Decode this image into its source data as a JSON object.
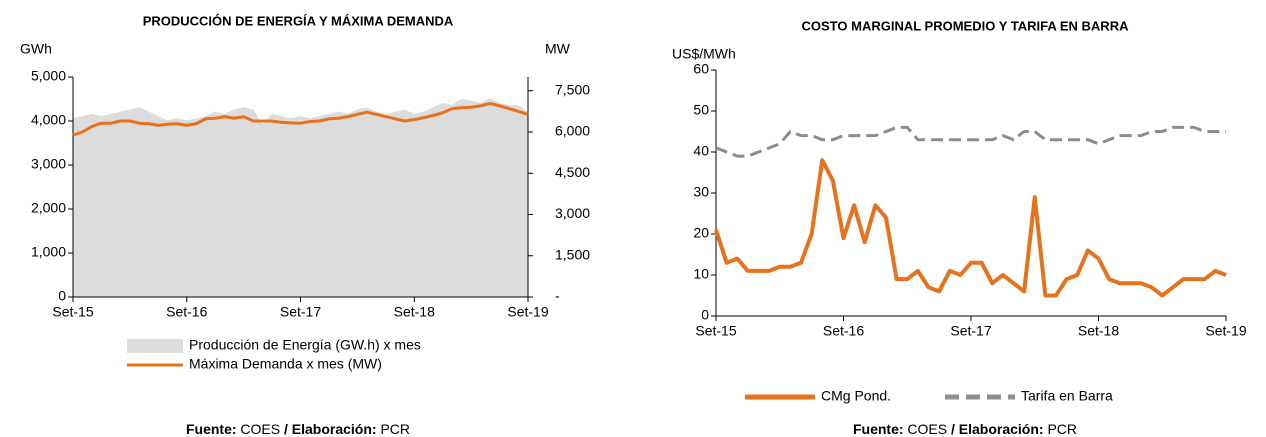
{
  "chart_data": [
    {
      "type": "combo",
      "title": "PRODUCCIÓN DE ENERGÍA Y MÁXIMA DEMANDA",
      "ylabel": "GWh",
      "y2label": "MW",
      "categories": [
        "Set-15",
        null,
        null,
        null,
        null,
        null,
        null,
        null,
        null,
        null,
        null,
        null,
        "Set-16",
        null,
        null,
        null,
        null,
        null,
        null,
        null,
        null,
        null,
        null,
        null,
        "Set-17",
        null,
        null,
        null,
        null,
        null,
        null,
        null,
        null,
        null,
        null,
        null,
        "Set-18",
        null,
        null,
        null,
        null,
        null,
        null,
        null,
        null,
        null,
        null,
        null,
        "Set-19"
      ],
      "ylim": [
        0,
        5000
      ],
      "yticks": [
        0,
        {
          "value": 1000,
          "label": "1,000"
        },
        {
          "value": 2000,
          "label": "2,000"
        },
        {
          "value": 3000,
          "label": "3,000"
        },
        {
          "value": 4000,
          "label": "4,000"
        },
        {
          "value": 5000,
          "label": "5,000"
        }
      ],
      "y2lim": [
        0,
        8000
      ],
      "y2ticks": [
        {
          "value": 0,
          "label": "-"
        },
        {
          "value": 1500,
          "label": "1,500"
        },
        {
          "value": 3000,
          "label": "3,000"
        },
        {
          "value": 4500,
          "label": "4,500"
        },
        {
          "value": 6000,
          "label": "6,000"
        },
        {
          "value": 7500,
          "label": "7,500"
        }
      ],
      "series": [
        {
          "name": "Producción de Energía (GW.h) x mes",
          "type": "area",
          "color": "#dcdcdc",
          "values": [
            4050,
            4100,
            4150,
            4100,
            4150,
            4200,
            4250,
            4300,
            4200,
            4100,
            4000,
            4050,
            4000,
            4050,
            4100,
            4200,
            4150,
            4250,
            4300,
            4250,
            3900,
            4150,
            4100,
            4050,
            4100,
            4050,
            4100,
            4150,
            4200,
            4150,
            4250,
            4300,
            4200,
            4150,
            4200,
            4250,
            4150,
            4200,
            4300,
            4400,
            4350,
            4500,
            4450,
            4400,
            4500,
            4400,
            4350,
            4350,
            4200
          ]
        },
        {
          "name": "Máxima Demanda x mes (MW)",
          "type": "line",
          "axis": "y2",
          "color": "#e8711c",
          "values": [
            5890,
            6000,
            6200,
            6320,
            6320,
            6400,
            6400,
            6320,
            6300,
            6240,
            6280,
            6300,
            6240,
            6300,
            6480,
            6500,
            6560,
            6500,
            6560,
            6400,
            6400,
            6400,
            6350,
            6330,
            6320,
            6380,
            6400,
            6480,
            6500,
            6560,
            6640,
            6720,
            6640,
            6560,
            6480,
            6400,
            6450,
            6520,
            6600,
            6700,
            6850,
            6880,
            6900,
            6950,
            7040,
            6950,
            6850,
            6750,
            6640
          ]
        }
      ],
      "source": [
        "Fuente:",
        "COES",
        "/ Elaboración:",
        "PCR"
      ]
    },
    {
      "type": "line",
      "title": "COSTO MARGINAL PROMEDIO Y TARIFA EN BARRA",
      "ylabel": "US$/MWh",
      "categories": [
        "Set-15",
        null,
        null,
        null,
        null,
        null,
        null,
        null,
        null,
        null,
        null,
        null,
        "Set-16",
        null,
        null,
        null,
        null,
        null,
        null,
        null,
        null,
        null,
        null,
        null,
        "Set-17",
        null,
        null,
        null,
        null,
        null,
        null,
        null,
        null,
        null,
        null,
        null,
        "Set-18",
        null,
        null,
        null,
        null,
        null,
        null,
        null,
        null,
        null,
        null,
        null,
        "Set-19"
      ],
      "ylim": [
        0,
        60
      ],
      "yticks": [
        0,
        10,
        20,
        30,
        40,
        50,
        60
      ],
      "series": [
        {
          "name": "CMg Pond.",
          "color": "#e8711c",
          "dash": false,
          "values": [
            21,
            13,
            14,
            11,
            11,
            11,
            12,
            12,
            13,
            20,
            38,
            33,
            19,
            27,
            18,
            27,
            24,
            9,
            9,
            11,
            7,
            6,
            11,
            10,
            13,
            13,
            8,
            10,
            8,
            6,
            29,
            5,
            5,
            9,
            10,
            16,
            14,
            9,
            8,
            8,
            8,
            7,
            5,
            7,
            9,
            9,
            9,
            11,
            10
          ]
        },
        {
          "name": "Tarifa en Barra",
          "color": "#8c8c8c",
          "dash": true,
          "values": [
            41,
            40,
            39,
            39,
            40,
            41,
            42,
            45,
            44,
            44,
            43,
            43,
            44,
            44,
            44,
            44,
            45,
            46,
            46,
            43,
            43,
            43,
            43,
            43,
            43,
            43,
            43,
            44,
            43,
            45,
            45,
            43,
            43,
            43,
            43,
            43,
            42,
            43,
            44,
            44,
            44,
            45,
            45,
            46,
            46,
            46,
            45,
            45,
            45
          ]
        }
      ],
      "source": [
        "Fuente:",
        "COES",
        "/ Elaboración:",
        "PCR"
      ]
    }
  ]
}
